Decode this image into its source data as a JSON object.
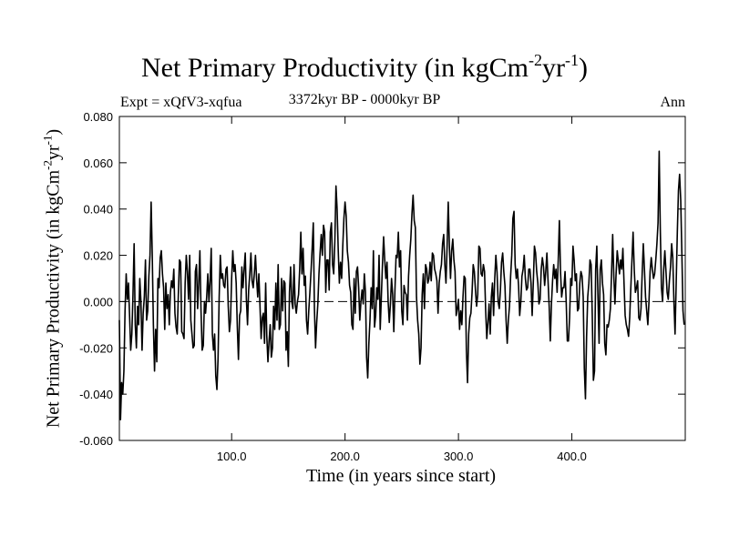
{
  "chart_data": {
    "type": "line",
    "title_main": "Net Primary Productivity (in kgCm",
    "title_sup1": "-2",
    "title_mid": "yr",
    "title_sup2": "-1",
    "title_end": ")",
    "subtitle_left": "Expt = xQfV3-xqfua",
    "subtitle_center": "3372kyr BP - 0000kyr BP",
    "subtitle_right": "Ann",
    "ylabel_main": "Net Primary Productivity (in kgCm",
    "ylabel_sup1": "-2",
    "ylabel_mid": "yr",
    "ylabel_sup2": "-1",
    "ylabel_end": ")",
    "xlabel": "Time (in years since start)",
    "xlim": [
      1,
      500
    ],
    "ylim": [
      -0.06,
      0.08
    ],
    "y_ticks": [
      {
        "value": -0.06,
        "label": "-0.060"
      },
      {
        "value": -0.04,
        "label": "-0.040"
      },
      {
        "value": -0.02,
        "label": "-0.020"
      },
      {
        "value": 0.0,
        "label": "0.000"
      },
      {
        "value": 0.02,
        "label": "0.020"
      },
      {
        "value": 0.04,
        "label": "0.040"
      },
      {
        "value": 0.06,
        "label": "0.060"
      },
      {
        "value": 0.08,
        "label": "0.080"
      }
    ],
    "x_ticks": [
      {
        "value": 100,
        "label": "100.0"
      },
      {
        "value": 200,
        "label": "200.0"
      },
      {
        "value": 300,
        "label": "300.0"
      },
      {
        "value": 400,
        "label": "400.0"
      }
    ],
    "reference_line": 0.0,
    "series": [
      {
        "name": "Ann",
        "x_start": 1,
        "x_step": 1,
        "values": [
          -0.008,
          -0.051,
          -0.035,
          -0.04,
          -0.03,
          -0.004,
          0.012,
          0.001,
          0.008,
          -0.006,
          -0.021,
          -0.014,
          0.003,
          0.025,
          -0.01,
          -0.02,
          -0.002,
          -0.01,
          0.01,
          0.0,
          -0.021,
          -0.005,
          0.002,
          0.018,
          -0.008,
          -0.004,
          0.011,
          0.02,
          0.043,
          0.02,
          -0.01,
          -0.03,
          -0.012,
          -0.026,
          0.01,
          0.006,
          0.019,
          0.022,
          0.012,
          0.006,
          -0.012,
          0.008,
          -0.003,
          0.003,
          -0.01,
          0.004,
          0.009,
          0.006,
          0.014,
          -0.005,
          -0.011,
          -0.014,
          0.003,
          0.018,
          0.017,
          -0.013,
          -0.014,
          -0.016,
          0.008,
          0.02,
          0.013,
          0.001,
          0.02,
          -0.008,
          -0.014,
          -0.02,
          -0.019,
          0.013,
          0.016,
          -0.003,
          0.008,
          0.022,
          -0.004,
          -0.021,
          -0.019,
          0.0,
          -0.005,
          0.002,
          0.012,
          0.0,
          0.009,
          0.023,
          -0.014,
          -0.021,
          -0.014,
          -0.032,
          -0.038,
          -0.025,
          0.002,
          0.02,
          0.01,
          0.012,
          0.007,
          0.006,
          0.014,
          0.015,
          -0.002,
          -0.013,
          -0.008,
          0.01,
          0.022,
          0.013,
          0.016,
          0.008,
          -0.011,
          -0.025,
          -0.006,
          -0.004,
          0.015,
          0.006,
          0.014,
          0.021,
          0.001,
          -0.01,
          0.005,
          0.012,
          0.021,
          0.009,
          0.006,
          0.012,
          0.02,
          0.01,
          0.002,
          0.012,
          -0.002,
          -0.016,
          -0.007,
          -0.005,
          -0.018,
          0.008,
          -0.015,
          -0.026,
          -0.017,
          -0.01,
          -0.024,
          -0.02,
          -0.002,
          -0.012,
          0.008,
          -0.008,
          0.016,
          -0.012,
          -0.01,
          0.01,
          -0.004,
          0.009,
          0.008,
          -0.021,
          -0.013,
          -0.028,
          0.004,
          0.015,
          0.0,
          -0.003,
          0.016,
          -0.001,
          -0.005,
          0.0,
          0.003,
          0.014,
          0.03,
          0.012,
          0.023,
          0.007,
          0.011,
          -0.008,
          -0.014,
          -0.004,
          0.004,
          0.013,
          0.023,
          0.034,
          -0.003,
          -0.02,
          -0.009,
          -0.001,
          0.012,
          0.021,
          0.029,
          0.02,
          0.033,
          0.03,
          0.004,
          0.018,
          0.018,
          0.005,
          0.03,
          0.034,
          0.016,
          0.012,
          0.026,
          0.05,
          0.04,
          0.022,
          0.008,
          0.017,
          0.01,
          0.024,
          0.036,
          0.043,
          0.037,
          0.022,
          0.017,
          0.007,
          0.004,
          -0.01,
          -0.012,
          0.01,
          -0.005,
          0.013,
          0.015,
          0.006,
          -0.008,
          0.0,
          0.005,
          -0.001,
          0.012,
          0.004,
          -0.024,
          -0.033,
          -0.018,
          -0.008,
          0.006,
          -0.003,
          0.022,
          -0.011,
          -0.006,
          0.006,
          0.001,
          0.02,
          -0.012,
          0.002,
          0.016,
          0.028,
          0.018,
          0.01,
          0.017,
          0.0,
          -0.009,
          -0.001,
          0.01,
          0.003,
          -0.013,
          0.005,
          0.02,
          0.019,
          0.03,
          0.015,
          0.022,
          -0.004,
          -0.01,
          0.007,
          0.004,
          0.003,
          -0.008,
          0.011,
          0.02,
          0.027,
          0.038,
          0.046,
          0.035,
          0.032,
          0.002,
          -0.008,
          -0.014,
          -0.027,
          -0.02,
          0.003,
          0.012,
          -0.003,
          0.016,
          0.014,
          0.008,
          0.01,
          0.017,
          0.009,
          0.021,
          0.02,
          0.014,
          0.012,
          0.009,
          -0.005,
          0.008,
          0.013,
          0.016,
          0.025,
          0.029,
          0.016,
          0.008,
          0.024,
          0.043,
          0.024,
          0.01,
          0.022,
          0.027,
          0.018,
          0.013,
          -0.006,
          -0.003,
          0.001,
          -0.012,
          -0.004,
          -0.01,
          0.002,
          0.011,
          0.01,
          -0.021,
          -0.035,
          -0.014,
          -0.007,
          -0.005,
          0.004,
          0.016,
          0.013,
          0.005,
          -0.002,
          0.003,
          0.024,
          0.023,
          0.012,
          0.011,
          0.016,
          0.013,
          -0.004,
          -0.016,
          -0.009,
          -0.001,
          -0.014,
          0.002,
          0.008,
          -0.006,
          0.01,
          0.02,
          0.013,
          0.0,
          -0.003,
          0.005,
          0.017,
          0.021,
          0.013,
          0.007,
          -0.008,
          -0.018,
          -0.008,
          -0.002,
          0.011,
          0.02,
          0.036,
          0.039,
          0.016,
          0.01,
          0.014,
          0.007,
          -0.006,
          0.0,
          0.011,
          0.014,
          0.02,
          0.01,
          0.005,
          0.006,
          0.014,
          0.014,
          0.008,
          -0.006,
          0.008,
          0.024,
          0.021,
          0.013,
          0.008,
          -0.001,
          0.001,
          0.014,
          0.019,
          0.015,
          0.007,
          0.013,
          0.021,
          0.009,
          -0.002,
          -0.017,
          -0.001,
          0.009,
          0.016,
          0.01,
          0.014,
          0.004,
          0.018,
          0.035,
          0.013,
          0.002,
          0.006,
          0.006,
          0.013,
          0.0,
          -0.017,
          -0.017,
          -0.007,
          0.01,
          0.007,
          0.024,
          0.018,
          0.009,
          0.012,
          -0.004,
          -0.003,
          0.008,
          0.013,
          0.011,
          0.002,
          -0.029,
          -0.042,
          -0.015,
          0.002,
          0.008,
          0.018,
          0.016,
          -0.006,
          -0.034,
          -0.03,
          0.014,
          0.024,
          0.003,
          -0.018,
          0.014,
          0.018,
          0.008,
          0.003,
          -0.018,
          -0.023,
          -0.01,
          -0.011,
          -0.008,
          -0.003,
          0.012,
          0.029,
          0.011,
          -0.001,
          0.012,
          0.022,
          0.017,
          0.012,
          0.018,
          0.014,
          0.023,
          0.008,
          -0.006,
          -0.01,
          -0.012,
          -0.015,
          -0.007,
          0.006,
          0.018,
          0.03,
          0.014,
          0.004,
          0.006,
          0.009,
          -0.007,
          -0.008,
          -0.003,
          0.012,
          0.025,
          0.014,
          0.002,
          -0.004,
          -0.01,
          0.0,
          0.013,
          0.019,
          0.014,
          0.01,
          0.012,
          0.018,
          0.025,
          0.034,
          0.065,
          0.031,
          0.006,
          0.0,
          0.014,
          0.022,
          0.013,
          0.004,
          0.001,
          0.009,
          0.015,
          0.025,
          0.019,
          0.0,
          -0.014,
          0.008,
          0.03,
          0.048,
          0.055,
          0.044,
          0.021,
          -0.004,
          -0.01
        ]
      }
    ]
  }
}
